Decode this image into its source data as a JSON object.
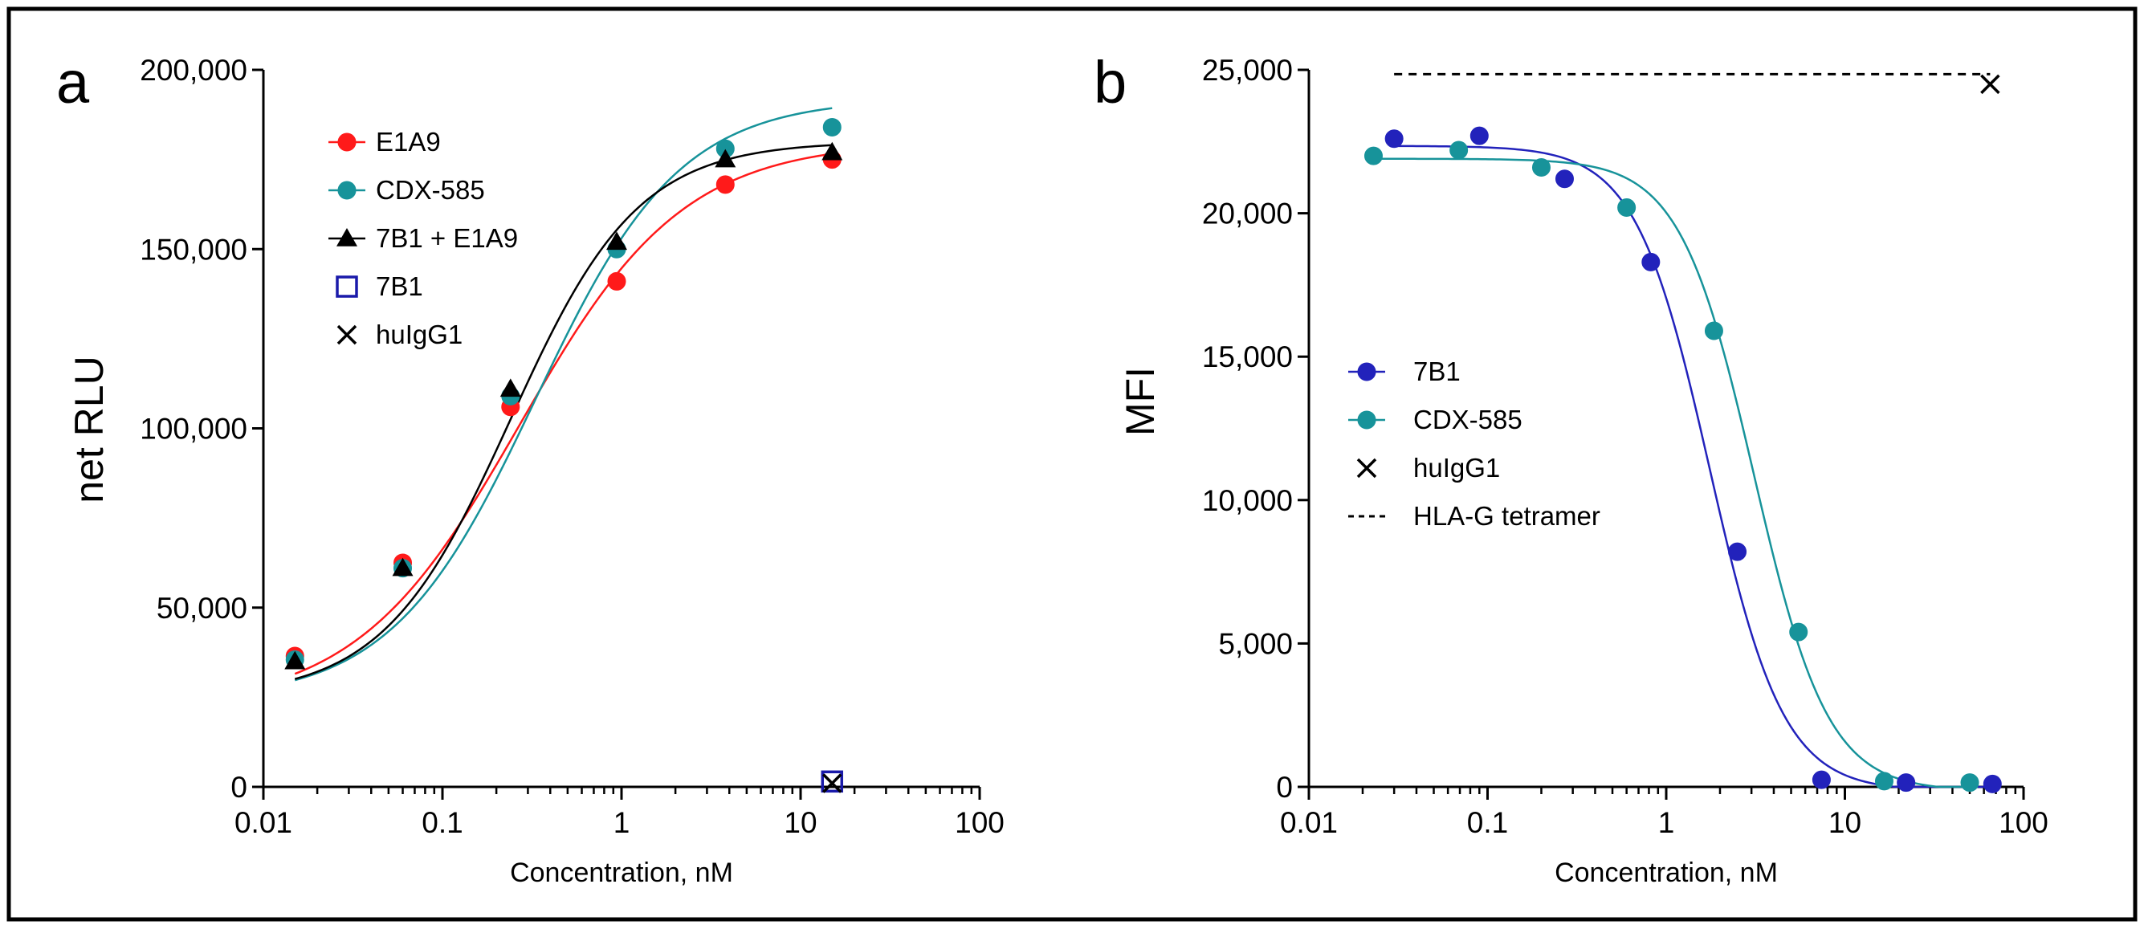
{
  "chart_data": [
    {
      "panel_label": "a",
      "type": "scatter",
      "title": "",
      "xlabel": "Concentration, nM",
      "ylabel": "net RLU",
      "xscale": "log",
      "xlim": [
        0.01,
        100
      ],
      "ylim": [
        0,
        200000
      ],
      "x_ticks": [
        0.01,
        0.1,
        1,
        10,
        100
      ],
      "x_tick_labels": [
        "0.01",
        "0.1",
        "1",
        "10",
        "100"
      ],
      "y_ticks": [
        0,
        50000,
        100000,
        150000,
        200000
      ],
      "y_tick_labels": [
        "0",
        "50,000",
        "100,000",
        "150,000",
        "200,000"
      ],
      "legend_position": "top-left",
      "series": [
        {
          "name": "E1A9",
          "color": "#ff1a1a",
          "marker": "filled-circle",
          "fit": true,
          "x": [
            0.015,
            0.06,
            0.24,
            0.94,
            3.8,
            15
          ],
          "y": [
            36500,
            62500,
            106000,
            141000,
            168000,
            175000
          ],
          "fit_curve": {
            "bottom": 22000,
            "top": 180000,
            "ec50": 0.27,
            "hill": 0.95
          }
        },
        {
          "name": "CDX-585",
          "color": "#17939a",
          "marker": "filled-circle",
          "fit": true,
          "x": [
            0.015,
            0.06,
            0.24,
            0.94,
            3.8,
            15
          ],
          "y": [
            35500,
            61000,
            109000,
            150000,
            178000,
            184000
          ],
          "fit_curve": {
            "bottom": 24000,
            "top": 192000,
            "ec50": 0.33,
            "hill": 1.08
          }
        },
        {
          "name": "7B1 + E1A9",
          "color": "#000000",
          "marker": "filled-triangle",
          "fit": true,
          "x": [
            0.015,
            0.06,
            0.24,
            0.94,
            3.8,
            15
          ],
          "y": [
            35000,
            61000,
            111000,
            152000,
            175000,
            177000
          ],
          "fit_curve": {
            "bottom": 25000,
            "top": 180000,
            "ec50": 0.24,
            "hill": 1.22
          }
        },
        {
          "name": "7B1",
          "color": "#1a1aaa",
          "marker": "open-square",
          "fit": false,
          "x": [
            15
          ],
          "y": [
            1500
          ]
        },
        {
          "name": "huIgG1",
          "color": "#000000",
          "marker": "cross",
          "fit": false,
          "x": [
            15
          ],
          "y": [
            1000
          ]
        }
      ]
    },
    {
      "panel_label": "b",
      "type": "scatter",
      "title": "",
      "xlabel": "Concentration, nM",
      "ylabel": "MFI",
      "xscale": "log",
      "xlim": [
        0.01,
        100
      ],
      "ylim": [
        0,
        25000
      ],
      "x_ticks": [
        0.01,
        0.1,
        1,
        10,
        100
      ],
      "x_tick_labels": [
        "0.01",
        "0.1",
        "1",
        "10",
        "100"
      ],
      "y_ticks": [
        0,
        5000,
        10000,
        15000,
        20000,
        25000
      ],
      "y_tick_labels": [
        "0",
        "5,000",
        "10,000",
        "15,000",
        "20,000",
        "25,000"
      ],
      "legend_position": "center-left",
      "series": [
        {
          "name": "7B1",
          "color": "#2222bb",
          "marker": "filled-circle",
          "fit": true,
          "x": [
            0.03,
            0.09,
            0.27,
            0.82,
            2.5,
            7.4,
            22,
            67
          ],
          "y": [
            22600,
            22700,
            21200,
            18300,
            8200,
            250,
            150,
            100
          ],
          "fit_curve": {
            "bottom": -150,
            "top": 22350,
            "ec50": 1.75,
            "hill": -2.1
          }
        },
        {
          "name": "CDX-585",
          "color": "#17939a",
          "marker": "filled-circle",
          "fit": true,
          "x": [
            0.023,
            0.069,
            0.2,
            0.6,
            1.85,
            5.5,
            16.6,
            50
          ],
          "y": [
            22000,
            22200,
            21600,
            20200,
            15900,
            5400,
            200,
            150
          ],
          "fit_curve": {
            "bottom": -150,
            "top": 21900,
            "ec50": 3.1,
            "hill": -2.1
          }
        },
        {
          "name": "huIgG1",
          "color": "#000000",
          "marker": "cross",
          "fit": false,
          "x": [
            65
          ],
          "y": [
            24500
          ]
        },
        {
          "name": "HLA-G tetramer",
          "color": "#000000",
          "marker": "none",
          "line": "dashed",
          "fit": false,
          "x": [
            0.03,
            65
          ],
          "y": [
            24850,
            24850
          ]
        }
      ]
    }
  ]
}
